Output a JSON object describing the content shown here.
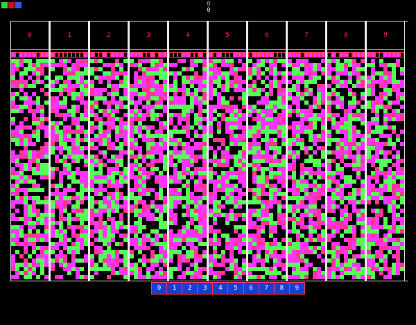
{
  "top_swatches": [
    {
      "name": "green",
      "color": "#22dd33"
    },
    {
      "name": "red",
      "color": "#cc1122"
    },
    {
      "name": "blue",
      "color": "#3355ee"
    }
  ],
  "score": {
    "top": "0",
    "bottom": "0"
  },
  "columns": [
    {
      "label": "0"
    },
    {
      "label": "1"
    },
    {
      "label": "2"
    },
    {
      "label": "3"
    },
    {
      "label": "4"
    },
    {
      "label": "5"
    },
    {
      "label": "6"
    },
    {
      "label": "7"
    },
    {
      "label": "8"
    },
    {
      "label": "9"
    }
  ],
  "palette": {
    "magenta": "#ff33ff",
    "green": "#55ff55",
    "pink": "#ff3399",
    "dark": "#000000",
    "accent": "#ff3355",
    "selector_bg": "#1a3fd0"
  },
  "selector": {
    "digits": [
      "0",
      "1",
      "2",
      "3",
      "4",
      "5",
      "6",
      "7",
      "8",
      "9"
    ]
  }
}
